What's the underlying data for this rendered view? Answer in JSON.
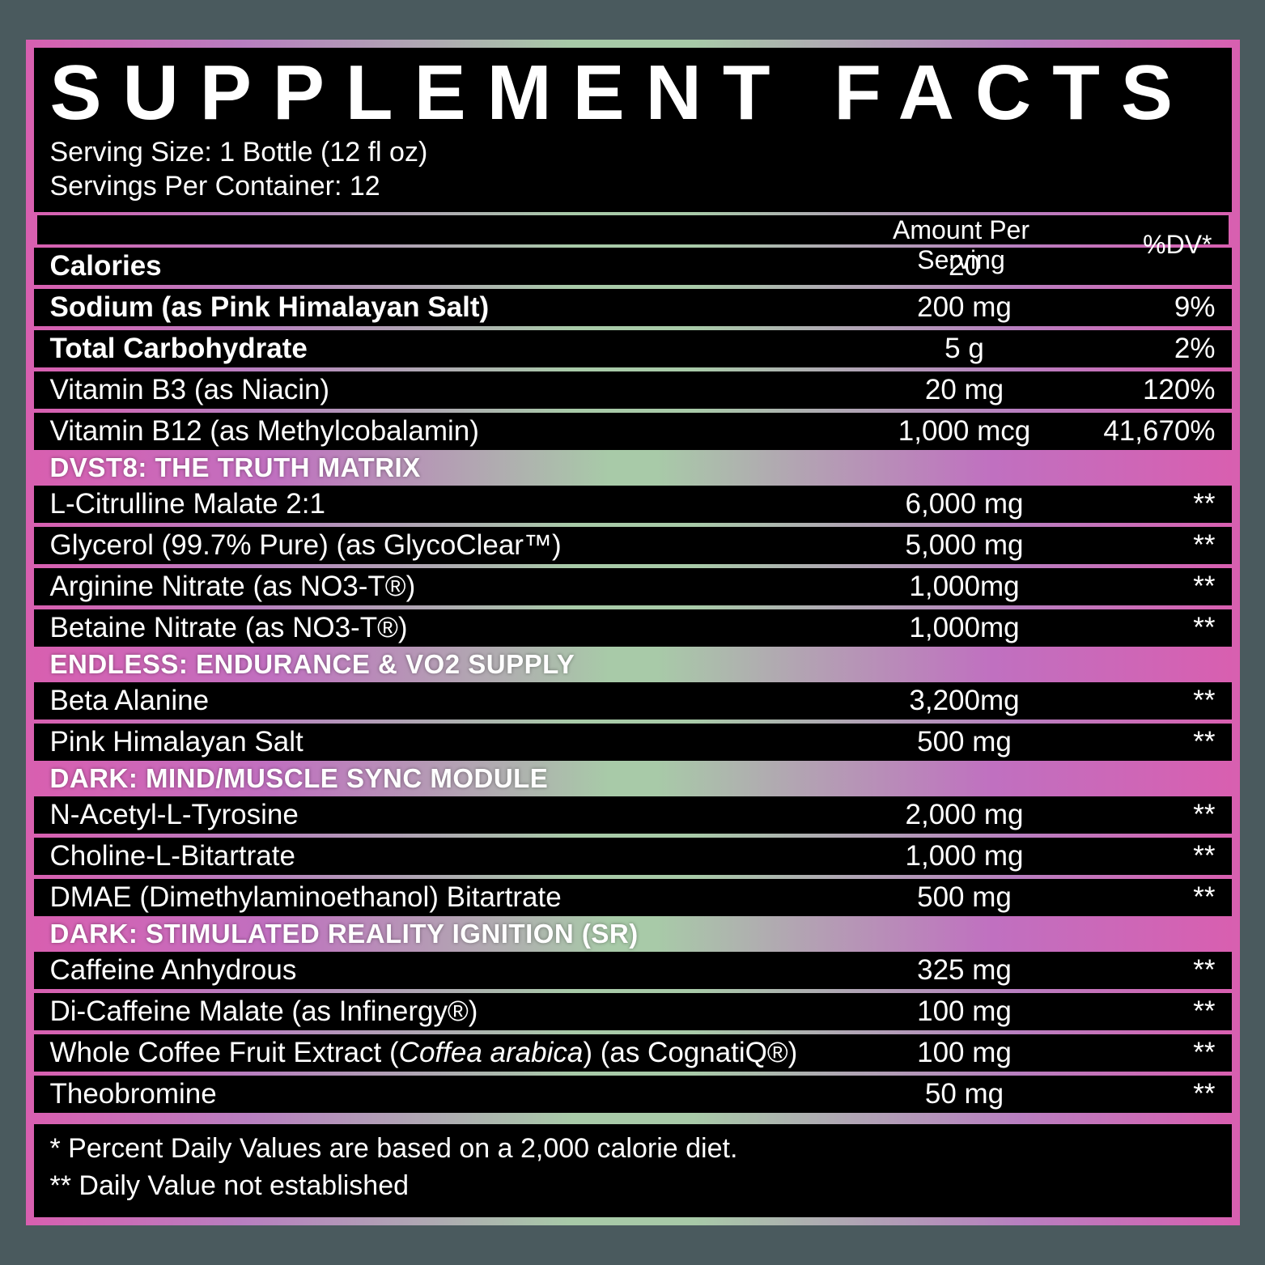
{
  "title": "SUPPLEMENT FACTS",
  "serving_size_label": "Serving Size: 1 Bottle (12 fl oz)",
  "servings_per_container_label": "Servings Per Container: 12",
  "header": {
    "amount": "Amount Per Serving",
    "dv": "%DV*"
  },
  "colors": {
    "bg_page": "#4a5a5e",
    "panel_black": "#000000",
    "text": "#ffffff",
    "grad_left": "#d85fb0",
    "grad_mid": "#a8caa8",
    "grad_right": "#d85fb0"
  },
  "nutrients": [
    {
      "name": "Calories",
      "amount": "20",
      "dv": "",
      "bold": true
    },
    {
      "name": "Sodium (as Pink Himalayan Salt)",
      "amount": "200 mg",
      "dv": "9%",
      "bold": true
    },
    {
      "name": "Total Carbohydrate",
      "amount": "5 g",
      "dv": "2%",
      "bold": true
    },
    {
      "name": "Vitamin B3 (as Niacin)",
      "amount": "20 mg",
      "dv": "120%",
      "bold": false
    },
    {
      "name": "Vitamin B12 (as Methylcobalamin)",
      "amount": "1,000 mcg",
      "dv": "41,670%",
      "bold": false
    }
  ],
  "sections": [
    {
      "title": "DVST8: THE TRUTH MATRIX",
      "rows": [
        {
          "name": "L-Citrulline Malate 2:1",
          "amount": "6,000 mg",
          "dv": "**"
        },
        {
          "name": "Glycerol (99.7% Pure) (as GlycoClear™)",
          "amount": "5,000 mg",
          "dv": "**"
        },
        {
          "name": "Arginine Nitrate (as NO3-T®)",
          "amount": "1,000mg",
          "dv": "**"
        },
        {
          "name": "Betaine Nitrate (as NO3-T®)",
          "amount": "1,000mg",
          "dv": "**"
        }
      ]
    },
    {
      "title": "ENDLESS: ENDURANCE & VO2 SUPPLY",
      "rows": [
        {
          "name": "Beta Alanine",
          "amount": "3,200mg",
          "dv": "**"
        },
        {
          "name": "Pink Himalayan Salt",
          "amount": "500 mg",
          "dv": "**"
        }
      ]
    },
    {
      "title": "DARK: MIND/MUSCLE SYNC MODULE",
      "rows": [
        {
          "name": "N-Acetyl-L-Tyrosine",
          "amount": "2,000 mg",
          "dv": "**"
        },
        {
          "name": "Choline-L-Bitartrate",
          "amount": "1,000 mg",
          "dv": "**"
        },
        {
          "name": "DMAE (Dimethylaminoethanol) Bitartrate",
          "amount": "500 mg",
          "dv": "**"
        }
      ]
    },
    {
      "title": "DARK: STIMULATED REALITY IGNITION (SR)",
      "rows": [
        {
          "name": "Caffeine Anhydrous",
          "amount": "325 mg",
          "dv": "**"
        },
        {
          "name": "Di-Caffeine Malate (as Infinergy®)",
          "amount": "100 mg",
          "dv": "**"
        },
        {
          "name_html": "Whole Coffee Fruit Extract (<span class=\"italic\">Coffea arabica</span>) (as CognatiQ®)",
          "amount": "100 mg",
          "dv": "**"
        },
        {
          "name": "Theobromine",
          "amount": "50 mg",
          "dv": "**"
        }
      ]
    }
  ],
  "footnotes": [
    "* Percent Daily Values are based on a 2,000 calorie diet.",
    "** Daily Value not established"
  ]
}
